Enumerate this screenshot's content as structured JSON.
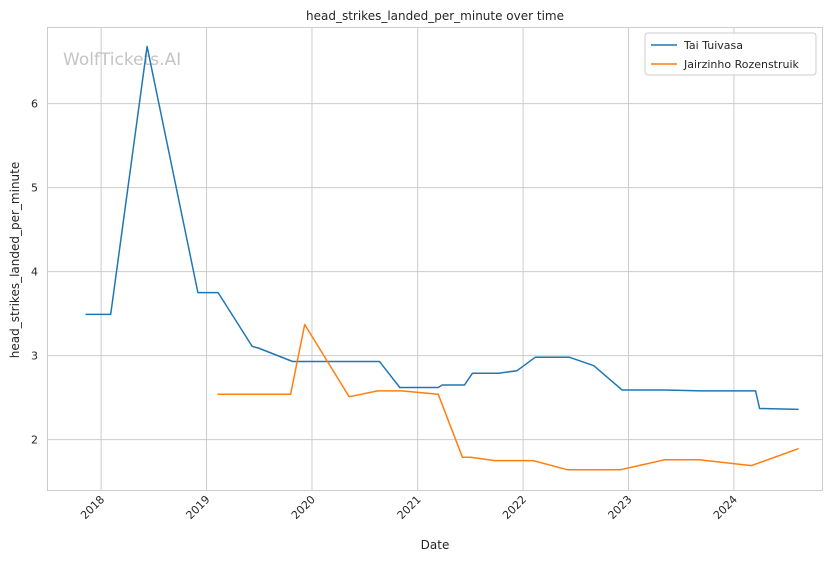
{
  "chart_data": {
    "type": "line",
    "title": "head_strikes_landed_per_minute over time",
    "xlabel": "Date",
    "ylabel": "head_strikes_landed_per_minute",
    "watermark": "WolfTickets.AI",
    "x_ticks": [
      "2018",
      "2019",
      "2020",
      "2021",
      "2022",
      "2023",
      "2024"
    ],
    "y_ticks": [
      "2",
      "3",
      "4",
      "5",
      "6"
    ],
    "ylim": [
      1.4,
      6.9
    ],
    "xlim": [
      "2017-07-01",
      "2024-11-01"
    ],
    "grid": true,
    "legend": "top-right",
    "series": [
      {
        "name": "Tai Tuivasa",
        "color": "#1f77b4",
        "points": [
          [
            "2017-11-10",
            3.49
          ],
          [
            "2018-02-03",
            3.49
          ],
          [
            "2018-06-09",
            6.68
          ],
          [
            "2018-12-02",
            3.75
          ],
          [
            "2019-02-10",
            3.75
          ],
          [
            "2019-06-08",
            3.11
          ],
          [
            "2019-06-29",
            3.09
          ],
          [
            "2019-10-26",
            2.93
          ],
          [
            "2020-05-13",
            2.93
          ],
          [
            "2020-08-22",
            2.93
          ],
          [
            "2020-10-31",
            2.62
          ],
          [
            "2021-03-13",
            2.62
          ],
          [
            "2021-03-27",
            2.65
          ],
          [
            "2021-06-12",
            2.65
          ],
          [
            "2021-07-10",
            2.79
          ],
          [
            "2021-10-09",
            2.79
          ],
          [
            "2021-12-11",
            2.82
          ],
          [
            "2022-02-12",
            2.98
          ],
          [
            "2022-06-11",
            2.98
          ],
          [
            "2022-09-03",
            2.88
          ],
          [
            "2022-12-10",
            2.59
          ],
          [
            "2023-05-06",
            2.59
          ],
          [
            "2023-09-09",
            2.58
          ],
          [
            "2024-03-16",
            2.58
          ],
          [
            "2024-03-30",
            2.37
          ],
          [
            "2024-08-10",
            2.36
          ]
        ]
      },
      {
        "name": "Jairzinho Rozenstruik",
        "color": "#ff7f0e",
        "points": [
          [
            "2019-02-10",
            2.54
          ],
          [
            "2019-10-19",
            2.54
          ],
          [
            "2019-12-07",
            3.37
          ],
          [
            "2020-05-09",
            2.51
          ],
          [
            "2020-08-15",
            2.58
          ],
          [
            "2020-11-07",
            2.58
          ],
          [
            "2021-03-13",
            2.54
          ],
          [
            "2021-06-05",
            1.79
          ],
          [
            "2021-07-03",
            1.79
          ],
          [
            "2021-09-25",
            1.75
          ],
          [
            "2022-02-05",
            1.75
          ],
          [
            "2022-06-04",
            1.64
          ],
          [
            "2022-12-03",
            1.64
          ],
          [
            "2023-05-06",
            1.76
          ],
          [
            "2023-09-02",
            1.76
          ],
          [
            "2024-03-02",
            1.69
          ],
          [
            "2024-08-10",
            1.89
          ]
        ]
      }
    ]
  }
}
